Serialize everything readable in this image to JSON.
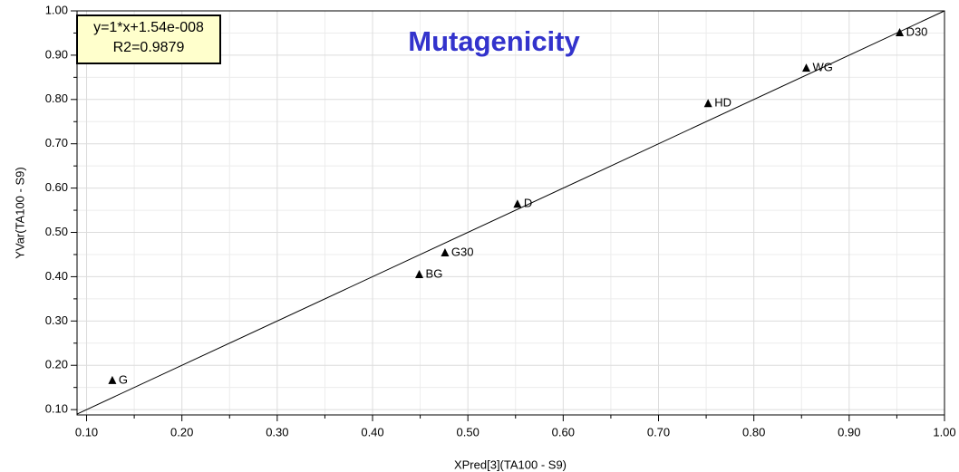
{
  "chart_data": {
    "type": "scatter",
    "title": "Mutagenicity",
    "x_label": "XPred[3](TA100 - S9)",
    "y_label": "YVar(TA100 - S9)",
    "annotation": [
      "y=1*x+1.54e-008",
      "R2=0.9879"
    ],
    "fit": {
      "slope": 1,
      "intercept": 1.54e-08
    },
    "labels": [
      "G",
      "BG",
      "G30",
      "D",
      "HD",
      "WG",
      "D30"
    ],
    "x": [
      0.127,
      0.449,
      0.476,
      0.552,
      0.752,
      0.855,
      0.953
    ],
    "values": [
      0.166,
      0.405,
      0.454,
      0.564,
      0.791,
      0.871,
      0.951
    ],
    "color": "#000000",
    "title_color": "#3333cc",
    "xlim": [
      0.09,
      1.0
    ],
    "ylim": [
      0.088,
      1.0
    ],
    "xticks": [
      {
        "value": 0.1,
        "label": "0.10"
      },
      {
        "value": 0.2,
        "label": "0.20"
      },
      {
        "value": 0.3,
        "label": "0.30"
      },
      {
        "value": 0.4,
        "label": "0.40"
      },
      {
        "value": 0.5,
        "label": "0.50"
      },
      {
        "value": 0.6,
        "label": "0.60"
      },
      {
        "value": 0.7,
        "label": "0.70"
      },
      {
        "value": 0.8,
        "label": "0.80"
      },
      {
        "value": 0.9,
        "label": "0.90"
      },
      {
        "value": 1.0,
        "label": "1.00"
      }
    ],
    "yticks": [
      {
        "value": 0.1,
        "label": "0.10"
      },
      {
        "value": 0.2,
        "label": "0.20"
      },
      {
        "value": 0.3,
        "label": "0.30"
      },
      {
        "value": 0.4,
        "label": "0.40"
      },
      {
        "value": 0.5,
        "label": "0.50"
      },
      {
        "value": 0.6,
        "label": "0.60"
      },
      {
        "value": 0.7,
        "label": "0.70"
      },
      {
        "value": 0.8,
        "label": "0.80"
      },
      {
        "value": 0.9,
        "label": "0.90"
      },
      {
        "value": 1.0,
        "label": "1.00"
      }
    ],
    "grid": true
  }
}
